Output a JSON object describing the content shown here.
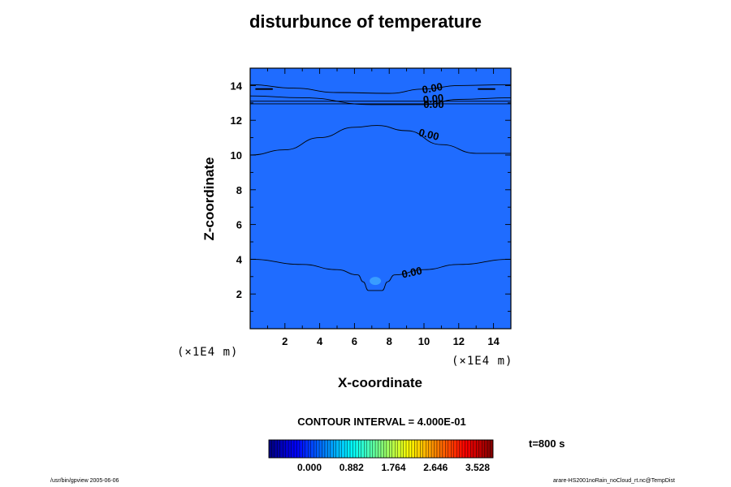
{
  "chart_data": {
    "type": "contour",
    "title": "disturbunce of temperature",
    "xlabel": "X-coordinate",
    "ylabel": "Z-coordinate",
    "x_unit": "(×1E4 m)",
    "y_unit": "(×1E4 m)",
    "xlim": [
      0,
      15
    ],
    "ylim": [
      0,
      15
    ],
    "xticks": [
      2,
      4,
      6,
      8,
      10,
      12,
      14
    ],
    "yticks": [
      2,
      4,
      6,
      8,
      10,
      12,
      14
    ],
    "background_color": "#1f6cff",
    "contour_interval_text": "CONTOUR INTERVAL = 4.000E-01",
    "time_label": "t=800 s",
    "contours": [
      {
        "label": "0.00",
        "points": [
          [
            0,
            13.4
          ],
          [
            3,
            13.3
          ],
          [
            7,
            12.9
          ],
          [
            10,
            12.9
          ],
          [
            12,
            13.2
          ],
          [
            15,
            13.3
          ]
        ]
      },
      {
        "label": "0.00",
        "points": [
          [
            0,
            13.1
          ],
          [
            15,
            13.1
          ]
        ]
      },
      {
        "label": "0.00",
        "points": [
          [
            0,
            12.95
          ],
          [
            15,
            12.95
          ]
        ]
      },
      {
        "label": "0.00",
        "points": [
          [
            0,
            14.05
          ],
          [
            2.5,
            13.85
          ],
          [
            5,
            13.6
          ],
          [
            8,
            13.55
          ],
          [
            10,
            13.8
          ],
          [
            12,
            14
          ],
          [
            15,
            14.05
          ]
        ]
      },
      {
        "label": "0.00",
        "points": [
          [
            0,
            10
          ],
          [
            2,
            10.3
          ],
          [
            4,
            11
          ],
          [
            6,
            11.6
          ],
          [
            7.3,
            11.7
          ],
          [
            9,
            11.4
          ],
          [
            11,
            10.6
          ],
          [
            13,
            10.1
          ],
          [
            15,
            10.1
          ]
        ]
      },
      {
        "label": "0.00",
        "points": [
          [
            0,
            4
          ],
          [
            3,
            3.7
          ],
          [
            5,
            3.4
          ],
          [
            6.2,
            3.1
          ],
          [
            6.5,
            2.7
          ],
          [
            6.8,
            2.2
          ],
          [
            7.6,
            2.2
          ],
          [
            7.9,
            2.7
          ],
          [
            8.3,
            3.1
          ],
          [
            10,
            3.4
          ],
          [
            12,
            3.7
          ],
          [
            15,
            4
          ]
        ]
      }
    ],
    "short_segments": [
      {
        "points": [
          [
            0.3,
            13.8
          ],
          [
            1.3,
            13.8
          ]
        ]
      },
      {
        "points": [
          [
            13.1,
            13.8
          ],
          [
            14.1,
            13.8
          ]
        ]
      }
    ],
    "highlight": {
      "x": 7.2,
      "z": 2.75,
      "color": "#3ea6ff"
    },
    "colorbar": {
      "min": 0.0,
      "max": 3.528,
      "tick_labels": [
        "0.000",
        "0.882",
        "1.764",
        "2.646",
        "3.528"
      ]
    }
  },
  "footer": {
    "left": "/usr/bin/gpview 2005-06-06",
    "right": "arare-HS2001noRain_noCloud_rt.nc@TempDist"
  }
}
